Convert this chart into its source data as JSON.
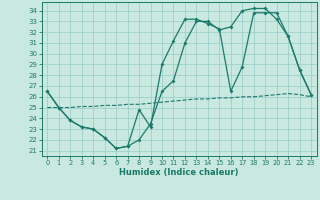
{
  "xlabel": "Humidex (Indice chaleur)",
  "background_color": "#c8e8e0",
  "grid_color": "#9fcfca",
  "line_color": "#1a7a6a",
  "xlim": [
    -0.5,
    23.5
  ],
  "ylim": [
    20.5,
    34.8
  ],
  "yticks": [
    21,
    22,
    23,
    24,
    25,
    26,
    27,
    28,
    29,
    30,
    31,
    32,
    33,
    34
  ],
  "xticks": [
    0,
    1,
    2,
    3,
    4,
    5,
    6,
    7,
    8,
    9,
    10,
    11,
    12,
    13,
    14,
    15,
    16,
    17,
    18,
    19,
    20,
    21,
    22,
    23
  ],
  "line1_x": [
    0,
    1,
    2,
    3,
    4,
    5,
    6,
    7,
    8,
    9,
    10,
    11,
    12,
    13,
    14,
    15,
    16,
    17,
    18,
    19,
    20,
    21,
    22,
    23
  ],
  "line1_y": [
    26.5,
    25.0,
    23.8,
    23.2,
    23.0,
    22.2,
    21.2,
    21.4,
    24.8,
    23.2,
    29.0,
    31.2,
    33.2,
    33.2,
    32.8,
    32.3,
    26.5,
    28.8,
    33.8,
    33.8,
    33.8,
    31.6,
    28.5,
    26.2
  ],
  "line2_x": [
    0,
    1,
    2,
    3,
    4,
    5,
    6,
    7,
    8,
    9,
    10,
    11,
    12,
    13,
    14,
    15,
    16,
    17,
    18,
    19,
    20,
    21,
    22,
    23
  ],
  "line2_y": [
    25.0,
    25.0,
    25.0,
    25.1,
    25.1,
    25.2,
    25.2,
    25.3,
    25.3,
    25.4,
    25.5,
    25.6,
    25.7,
    25.8,
    25.8,
    25.9,
    25.9,
    26.0,
    26.0,
    26.1,
    26.2,
    26.3,
    26.2,
    26.0
  ],
  "line3_x": [
    0,
    1,
    2,
    3,
    4,
    5,
    6,
    7,
    8,
    9,
    10,
    11,
    12,
    13,
    14,
    15,
    16,
    17,
    18,
    19,
    20,
    21,
    22,
    23
  ],
  "line3_y": [
    26.5,
    25.0,
    23.8,
    23.2,
    23.0,
    22.2,
    21.2,
    21.4,
    22.0,
    23.5,
    26.5,
    27.5,
    31.0,
    33.0,
    33.0,
    32.2,
    32.5,
    34.0,
    34.2,
    34.2,
    33.2,
    31.6,
    28.5,
    26.2
  ]
}
